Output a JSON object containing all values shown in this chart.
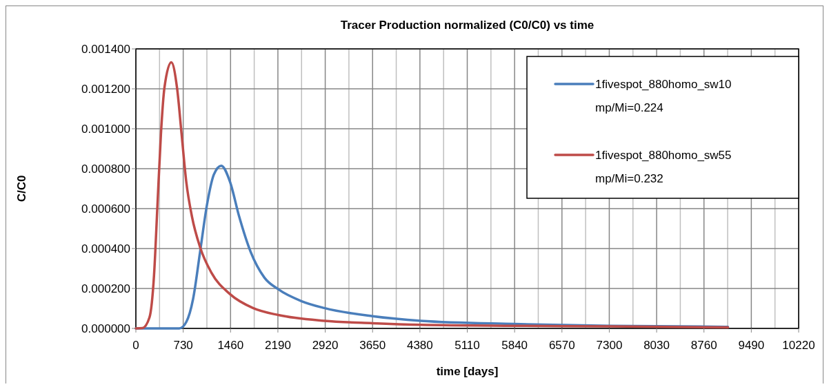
{
  "chart_data": {
    "type": "line",
    "title": "Tracer Production normalized (C0/C0) vs time",
    "xlabel": "time [days]",
    "ylabel": "C/C0",
    "xlim": [
      0,
      10220
    ],
    "xticks": [
      0,
      730,
      1460,
      2190,
      2920,
      3650,
      4380,
      5110,
      5840,
      6570,
      7300,
      8030,
      8760,
      9490,
      10220
    ],
    "ylim": [
      0,
      0.0014
    ],
    "yticks": [
      {
        "value": 0,
        "label": "0.000000"
      },
      {
        "value": 0.0002,
        "label": "0.000200"
      },
      {
        "value": 0.0004,
        "label": "0.000400"
      },
      {
        "value": 0.0006,
        "label": "0.000600"
      },
      {
        "value": 0.0008,
        "label": "0.000800"
      },
      {
        "value": 0.001,
        "label": "0.001000"
      },
      {
        "value": 0.0012,
        "label": "0.001200"
      },
      {
        "value": 0.0014,
        "label": "0.001400"
      }
    ],
    "grid": true,
    "legend": "top right",
    "marker": "none",
    "line_style": "solid",
    "series": [
      {
        "name": "1fivespot_880homo_sw10\nmp/Mi=0.224",
        "color": "#4a7ebb",
        "x": [
          0,
          670,
          777,
          883,
          990,
          1096,
          1202,
          1316,
          1451,
          1593,
          1770,
          1983,
          2196,
          2551,
          2905,
          3650,
          4395,
          5840,
          7300,
          9130
        ],
        "values": [
          0,
          0,
          3.2e-05,
          0.000149,
          0.000383,
          0.000618,
          0.00077,
          0.000815,
          0.000735,
          0.00056,
          0.000383,
          0.000254,
          0.000196,
          0.000137,
          0.000102,
          6.1e-05,
          3.8e-05,
          2.2e-05,
          1.3e-05,
          8e-06
        ]
      },
      {
        "name": "1fivespot_880homo_sw55\nmp/Mi=0.232",
        "color": "#be4b48",
        "x": [
          0,
          103,
          210,
          280,
          333,
          386,
          440,
          546,
          635,
          706,
          777,
          865,
          990,
          1167,
          1451,
          1806,
          2196,
          2905,
          3650,
          4395,
          5840,
          7300,
          9130
        ],
        "values": [
          0,
          2e-06,
          5.5e-05,
          0.000266,
          0.000618,
          0.00097,
          0.001204,
          0.001333,
          0.001204,
          0.00097,
          0.000735,
          0.00056,
          0.000407,
          0.000278,
          0.000172,
          0.000102,
          6.7e-05,
          3.8e-05,
          2.6e-05,
          1.8e-05,
          1.3e-05,
          1e-05,
          5e-06
        ]
      }
    ]
  }
}
